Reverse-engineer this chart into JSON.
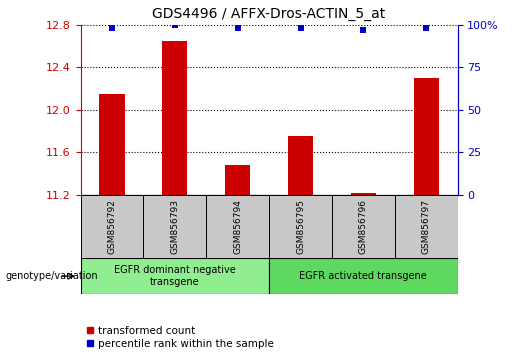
{
  "title": "GDS4496 / AFFX-Dros-ACTIN_5_at",
  "samples": [
    "GSM856792",
    "GSM856793",
    "GSM856794",
    "GSM856795",
    "GSM856796",
    "GSM856797"
  ],
  "transformed_count": [
    12.15,
    12.65,
    11.48,
    11.75,
    11.22,
    12.3
  ],
  "percentile_rank": [
    98,
    100,
    98,
    98,
    97,
    98
  ],
  "ylim_left": [
    11.2,
    12.8
  ],
  "ylim_right": [
    0,
    100
  ],
  "yticks_left": [
    11.2,
    11.6,
    12.0,
    12.4,
    12.8
  ],
  "yticks_right": [
    0,
    25,
    50,
    75,
    100
  ],
  "bar_color": "#cc0000",
  "dot_color": "#0000cc",
  "bar_width": 0.4,
  "groups": [
    {
      "label": "EGFR dominant negative\ntransgene",
      "indices": [
        0,
        1,
        2
      ],
      "color": "#90ee90"
    },
    {
      "label": "EGFR activated transgene",
      "indices": [
        3,
        4,
        5
      ],
      "color": "#5fd85f"
    }
  ],
  "genotype_label": "genotype/variation",
  "legend_items": [
    {
      "color": "#cc0000",
      "marker": "s",
      "label": "transformed count"
    },
    {
      "color": "#0000cc",
      "marker": "s",
      "label": "percentile rank within the sample"
    }
  ],
  "grid_color": "black",
  "grid_linestyle": "dotted",
  "left_axis_color": "#cc0000",
  "right_axis_color": "#0000cc",
  "sample_box_color": "#c8c8c8",
  "figure_width": 5.2,
  "figure_height": 3.54,
  "dpi": 100
}
